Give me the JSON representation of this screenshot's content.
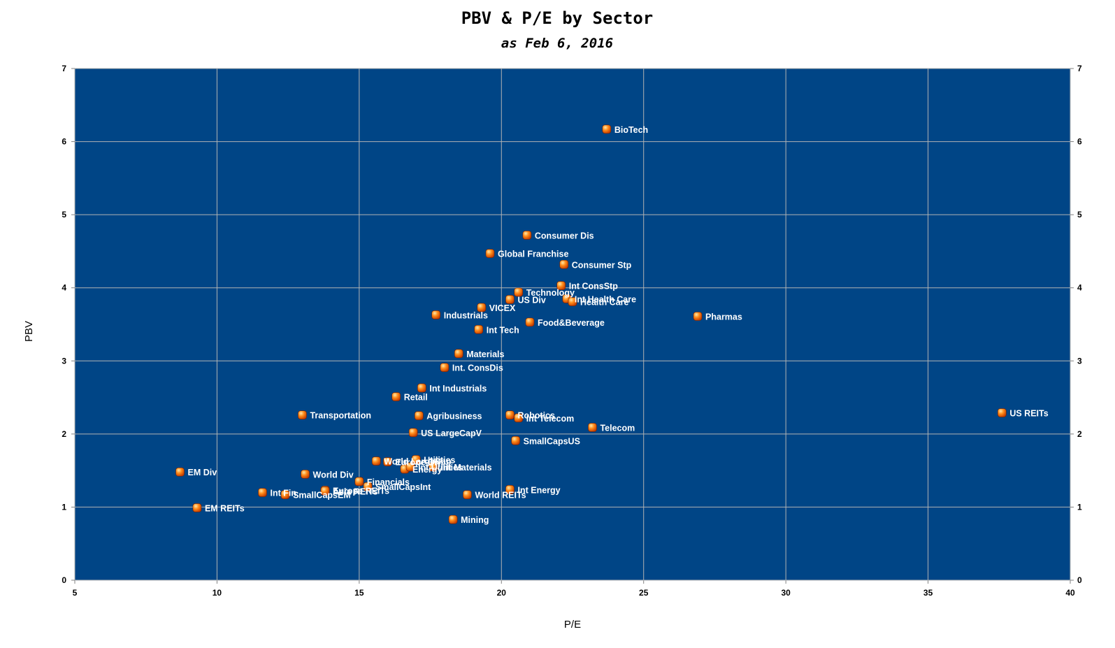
{
  "chart_data": {
    "type": "scatter",
    "title": "PBV & P/E by Sector",
    "subtitle": "as Feb 6, 2016",
    "xlabel": "P/E",
    "ylabel": "PBV",
    "xlim": [
      5,
      40
    ],
    "ylim": [
      0,
      7
    ],
    "xticks": [
      5,
      10,
      15,
      20,
      25,
      30,
      35,
      40
    ],
    "yticks": [
      0,
      1,
      2,
      3,
      4,
      5,
      6,
      7
    ],
    "grid": true,
    "right_axis": true,
    "colors": {
      "plot_background": "#004586",
      "grid": "#b3b3b3",
      "marker": "#ff7a00",
      "marker_highlight": "#ffd27a",
      "label": "#ffffff"
    },
    "points": [
      {
        "name": "BioTech",
        "x": 23.7,
        "y": 6.17
      },
      {
        "name": "Consumer Dis",
        "x": 20.9,
        "y": 4.72
      },
      {
        "name": "Global Franchise",
        "x": 19.6,
        "y": 4.47
      },
      {
        "name": "Consumer Stp",
        "x": 22.2,
        "y": 4.32
      },
      {
        "name": "Int ConsStp",
        "x": 22.1,
        "y": 4.03
      },
      {
        "name": "Technology",
        "x": 20.6,
        "y": 3.94
      },
      {
        "name": "US Div",
        "x": 20.3,
        "y": 3.84
      },
      {
        "name": "Int Health Care",
        "x": 22.3,
        "y": 3.85
      },
      {
        "name": "Health Care",
        "x": 22.5,
        "y": 3.81
      },
      {
        "name": "VICEX",
        "x": 19.3,
        "y": 3.73
      },
      {
        "name": "Industrials",
        "x": 17.7,
        "y": 3.63
      },
      {
        "name": "Pharmas",
        "x": 26.9,
        "y": 3.61
      },
      {
        "name": "Food&Beverage",
        "x": 21.0,
        "y": 3.53
      },
      {
        "name": "Int Tech",
        "x": 19.2,
        "y": 3.43
      },
      {
        "name": "Materials",
        "x": 18.5,
        "y": 3.1
      },
      {
        "name": "Int. ConsDis",
        "x": 18.0,
        "y": 2.91
      },
      {
        "name": "Int Industrials",
        "x": 17.2,
        "y": 2.63
      },
      {
        "name": "Retail",
        "x": 16.3,
        "y": 2.51
      },
      {
        "name": "Robotics",
        "x": 20.3,
        "y": 2.26
      },
      {
        "name": "Int Telecom",
        "x": 20.6,
        "y": 2.22
      },
      {
        "name": "Transportation",
        "x": 13.0,
        "y": 2.26
      },
      {
        "name": "Agribusiness",
        "x": 17.1,
        "y": 2.25
      },
      {
        "name": "US REITs",
        "x": 37.6,
        "y": 2.29
      },
      {
        "name": "Telecom",
        "x": 23.2,
        "y": 2.09
      },
      {
        "name": "US LargeCapV",
        "x": 16.9,
        "y": 2.02
      },
      {
        "name": "SmallCapsUS",
        "x": 20.5,
        "y": 1.91
      },
      {
        "name": "Utilities",
        "x": 17.0,
        "y": 1.65
      },
      {
        "name": "World LargeCap",
        "x": 15.6,
        "y": 1.63
      },
      {
        "name": "Europe Div",
        "x": 16.0,
        "y": 1.62
      },
      {
        "name": "Energy",
        "x": 16.6,
        "y": 1.52
      },
      {
        "name": "Int Utilities",
        "x": 16.8,
        "y": 1.55
      },
      {
        "name": "Int Materials",
        "x": 17.6,
        "y": 1.55
      },
      {
        "name": "EM Div",
        "x": 8.7,
        "y": 1.48
      },
      {
        "name": "World Div",
        "x": 13.1,
        "y": 1.45
      },
      {
        "name": "Financials",
        "x": 15.0,
        "y": 1.35
      },
      {
        "name": "Europe REITs",
        "x": 13.8,
        "y": 1.23
      },
      {
        "name": "SmallCapsInt",
        "x": 15.3,
        "y": 1.28
      },
      {
        "name": "World REITs",
        "x": 18.8,
        "y": 1.17
      },
      {
        "name": "Int Energy",
        "x": 20.3,
        "y": 1.24
      },
      {
        "name": "Int Fin",
        "x": 11.6,
        "y": 1.2
      },
      {
        "name": "SmallCapsEM",
        "x": 12.4,
        "y": 1.17
      },
      {
        "name": "Asia REITs",
        "x": 13.8,
        "y": 1.22
      },
      {
        "name": "EM REITs",
        "x": 9.3,
        "y": 0.99
      },
      {
        "name": "Mining",
        "x": 18.3,
        "y": 0.83
      }
    ]
  }
}
